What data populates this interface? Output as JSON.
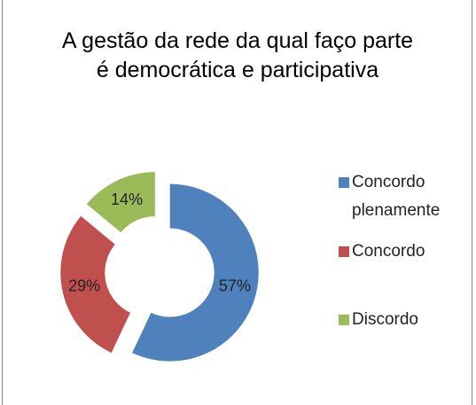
{
  "chart_data": {
    "type": "pie",
    "donut": true,
    "title": "A gestão da rede da qual faço parte é democrática e participativa",
    "categories": [
      "Concordo plenamente",
      "Concordo",
      "Discordo"
    ],
    "values": [
      57,
      29,
      14
    ],
    "value_labels": [
      "57%",
      "29%",
      "14%"
    ],
    "colors": [
      "#4f81bd",
      "#c0504d",
      "#9bbb59"
    ],
    "legend": "right"
  }
}
